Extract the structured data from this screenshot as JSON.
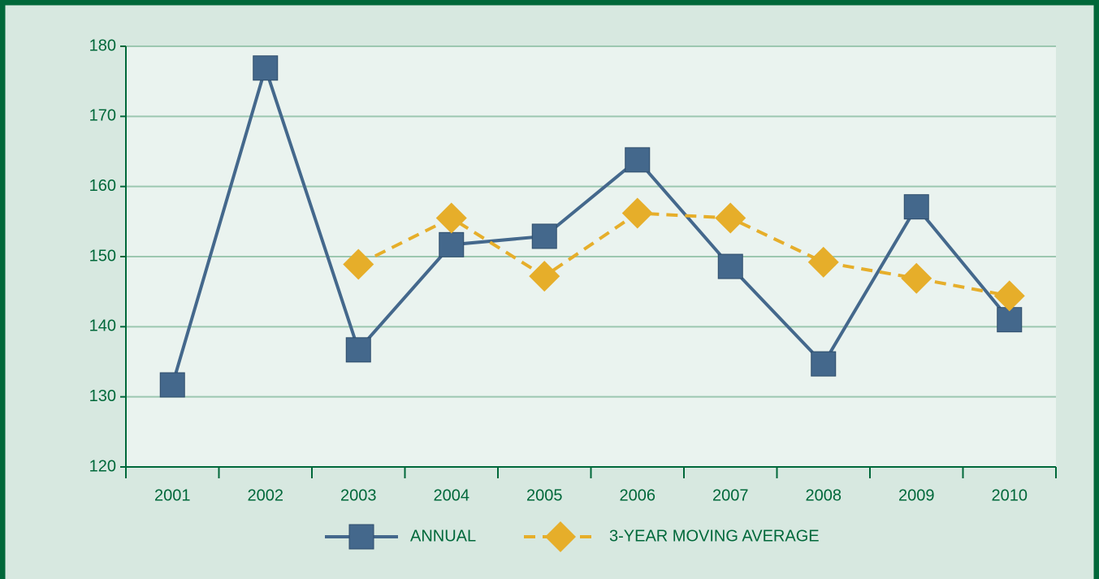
{
  "chart_data": {
    "type": "line",
    "categories": [
      "2001",
      "2002",
      "2003",
      "2004",
      "2005",
      "2006",
      "2007",
      "2008",
      "2009",
      "2010"
    ],
    "series": [
      {
        "name": "ANNUAL",
        "color": "#44688c",
        "values": [
          131.7,
          176.9,
          136.7,
          151.7,
          152.9,
          163.8,
          148.6,
          134.7,
          157.1,
          141.0
        ]
      },
      {
        "name": "3-YEAR MOVING AVERAGE",
        "color": "#e6ae2a",
        "values": [
          null,
          null,
          148.9,
          155.5,
          147.2,
          156.2,
          155.5,
          149.2,
          146.9,
          144.4
        ]
      }
    ],
    "ylim": [
      120,
      180
    ],
    "yticks": [
      120,
      130,
      140,
      150,
      160,
      170,
      180
    ],
    "grid": true
  }
}
